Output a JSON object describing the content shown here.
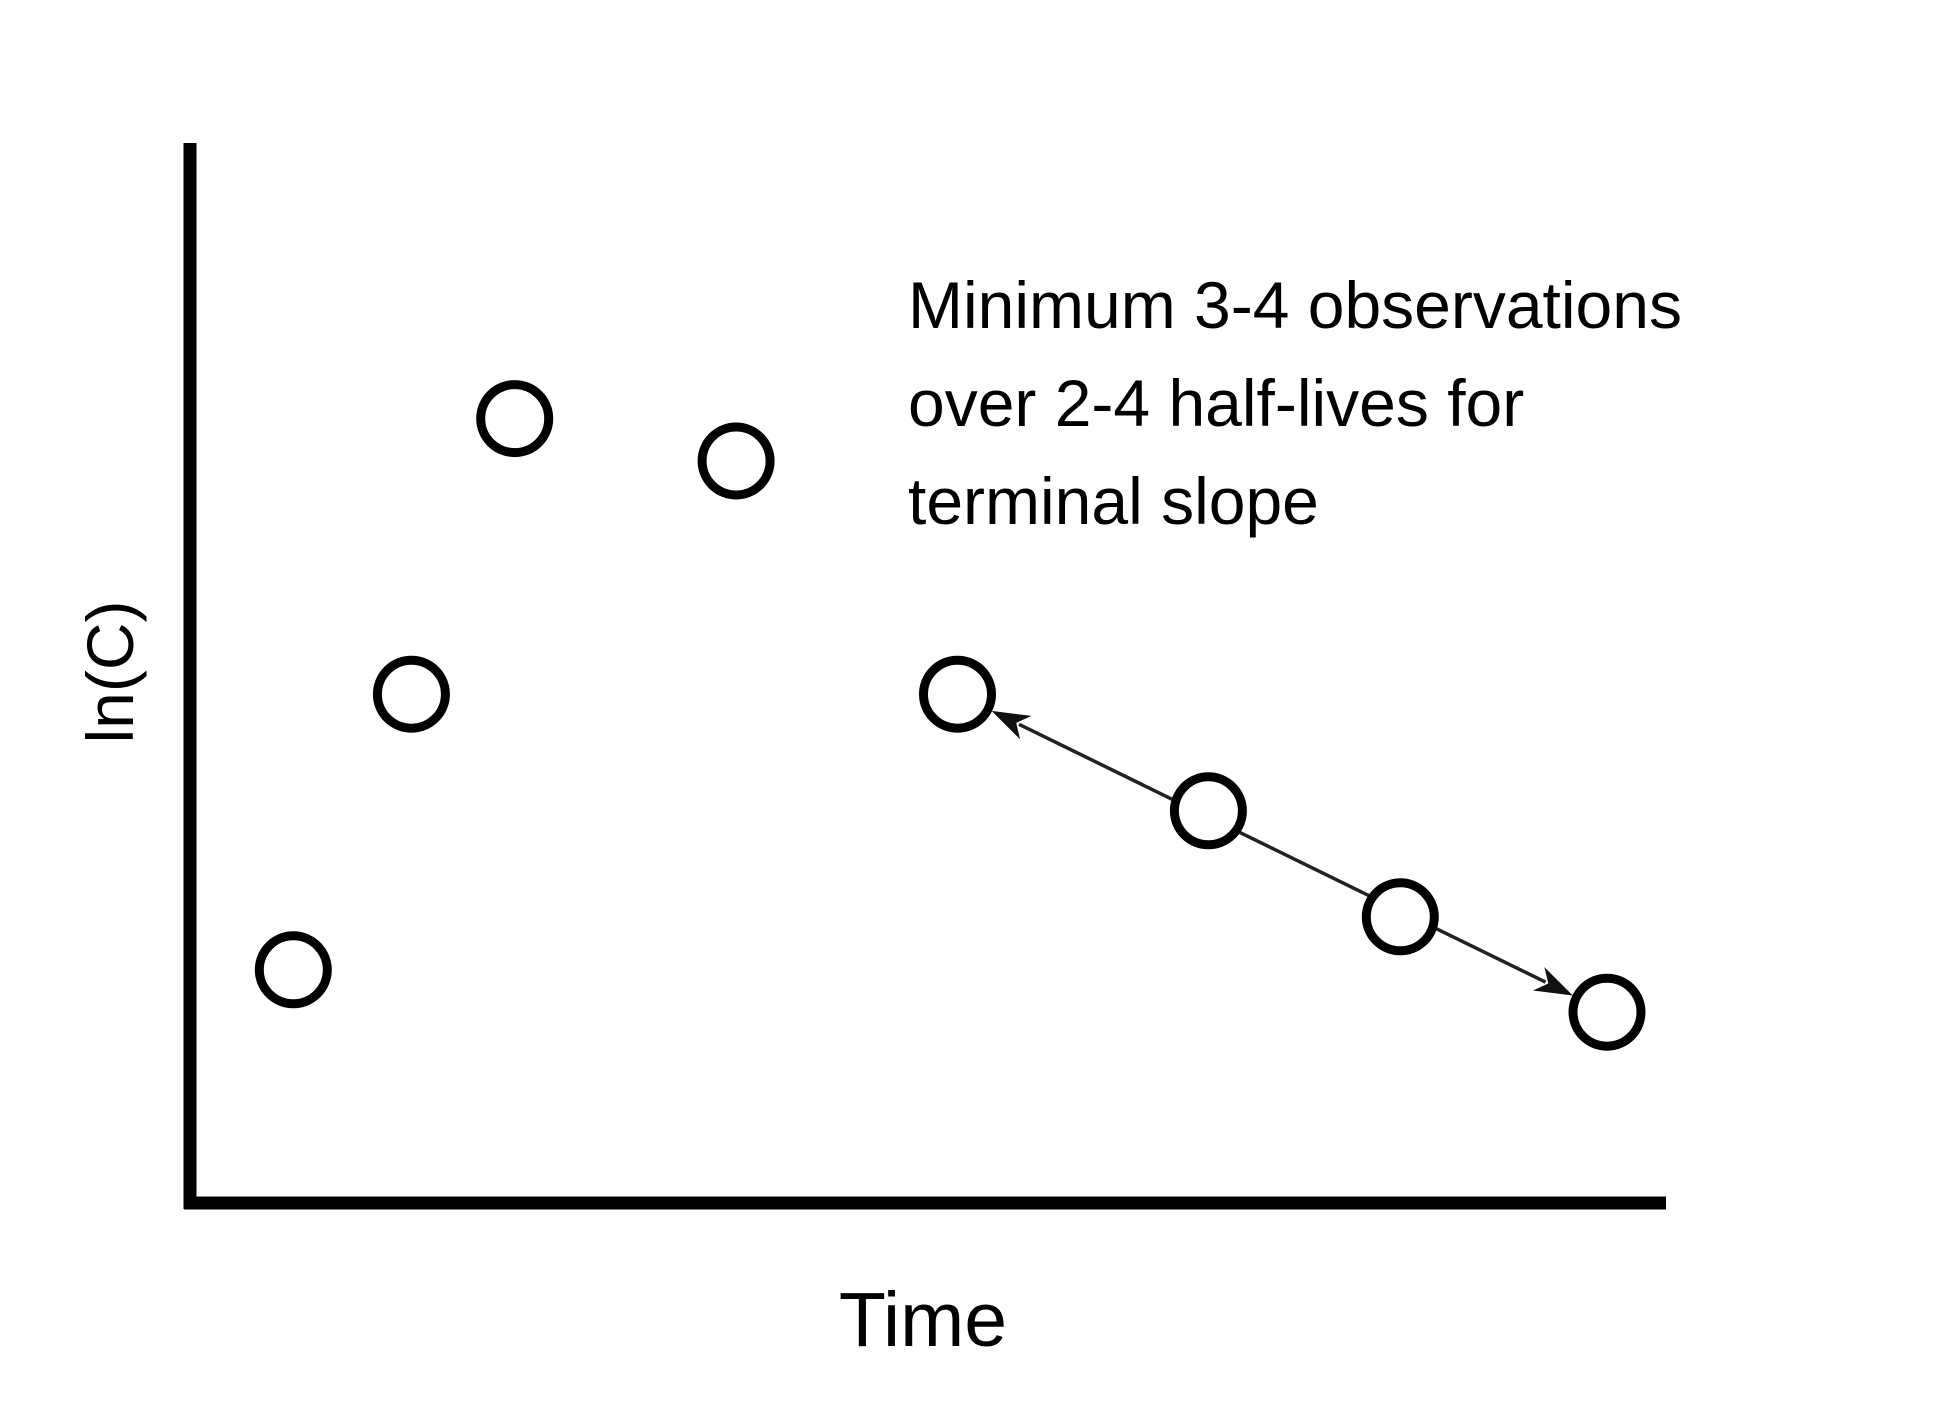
{
  "chart_data": {
    "type": "scatter",
    "title": "",
    "xlabel": "Time",
    "ylabel": "ln(C)",
    "x_ticks_shown": false,
    "y_ticks_shown": false,
    "grid": false,
    "legend": "none",
    "xlim": [
      0,
      10
    ],
    "ylim": [
      0,
      10
    ],
    "points": [
      {
        "x": 0.7,
        "y": 2.2
      },
      {
        "x": 1.5,
        "y": 4.8
      },
      {
        "x": 2.2,
        "y": 7.4
      },
      {
        "x": 3.7,
        "y": 7.0
      },
      {
        "x": 5.2,
        "y": 4.8
      },
      {
        "x": 6.9,
        "y": 3.7
      },
      {
        "x": 8.2,
        "y": 2.7
      },
      {
        "x": 9.6,
        "y": 1.8
      }
    ],
    "annotation": {
      "lines": [
        "Minimum 3-4 observations",
        "over 2-4 half-lives for",
        "terminal slope"
      ],
      "arrow": {
        "type": "double-headed",
        "from_point_index": 4,
        "to_point_index": 7
      }
    },
    "colors": {
      "axes": "#000000",
      "marker_stroke": "#000000",
      "marker_fill": "#ffffff",
      "arrow": "#222222"
    }
  }
}
